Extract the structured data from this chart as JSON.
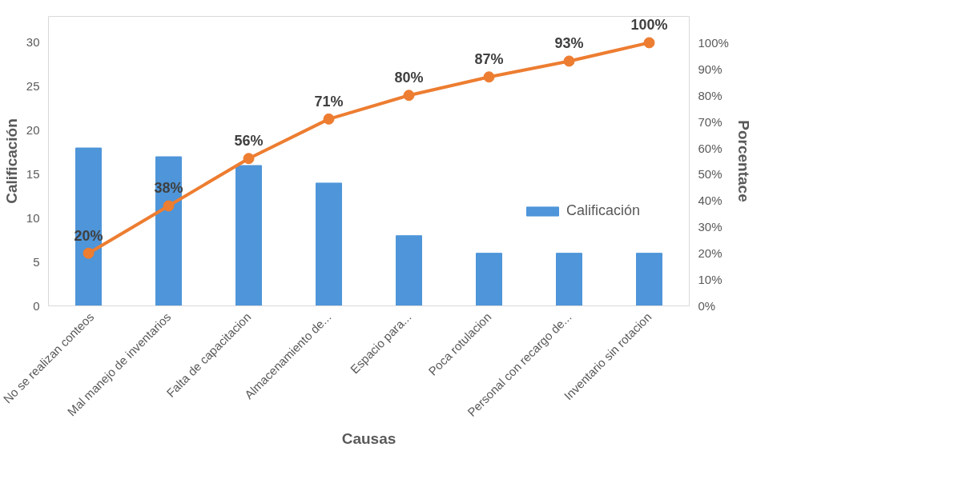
{
  "chart_data": {
    "type": "bar",
    "xlabel": "Causas",
    "ylabel": "Calificación",
    "y2label": "Porcentace",
    "categories": [
      "No se realizan conteos",
      "Mal manejo de inventarios",
      "Falta de capacitacion",
      "Almacenamiento de...",
      "Espacio para...",
      "Poca rotulacion",
      "Personal con recargo de...",
      "Inventario sin rotacion"
    ],
    "series": [
      {
        "name": "Calificación",
        "color": "#4e95d9",
        "values": [
          18,
          17,
          16,
          14,
          8,
          6,
          6,
          6
        ]
      },
      {
        "type": "line",
        "axis": "y2",
        "color": "#ed7d31",
        "marker": "circle",
        "values": [
          20,
          38,
          56,
          71,
          80,
          87,
          93,
          100
        ],
        "value_labels": [
          "20%",
          "38%",
          "56%",
          "71%",
          "80%",
          "87%",
          "93%",
          "100%"
        ]
      }
    ],
    "ylim": [
      0,
      33
    ],
    "yticks": [
      0,
      5,
      10,
      15,
      20,
      25,
      30
    ],
    "y2lim": [
      0,
      110
    ],
    "y2ticks": [
      {
        "value": 0,
        "label": "0%"
      },
      {
        "value": 10,
        "label": "10%"
      },
      {
        "value": 20,
        "label": "20%"
      },
      {
        "value": 30,
        "label": "30%"
      },
      {
        "value": 40,
        "label": "40%"
      },
      {
        "value": 50,
        "label": "50%"
      },
      {
        "value": 60,
        "label": "60%"
      },
      {
        "value": 70,
        "label": "70%"
      },
      {
        "value": 80,
        "label": "80%"
      },
      {
        "value": 90,
        "label": "90%"
      },
      {
        "value": 100,
        "label": "100%"
      }
    ],
    "grid": false,
    "legend": "bottom right"
  }
}
